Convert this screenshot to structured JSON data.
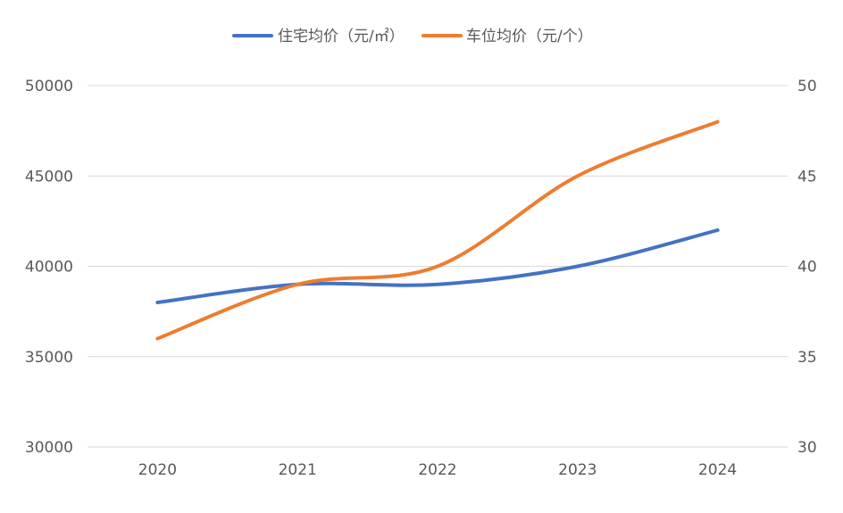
{
  "chart_data": {
    "type": "line",
    "categories": [
      "2020",
      "2021",
      "2022",
      "2023",
      "2024"
    ],
    "series": [
      {
        "name": "住宅均价（元/㎡）",
        "axis": "left",
        "color": "#4472C4",
        "values": [
          38000,
          39000,
          39000,
          40000,
          42000
        ]
      },
      {
        "name": "车位均价（元/个）",
        "axis": "right",
        "color": "#ED7D31",
        "values": [
          36,
          39,
          40,
          45,
          48
        ]
      }
    ],
    "y_left": {
      "min": 30000,
      "max": 50000,
      "ticks": [
        "30000",
        "35000",
        "40000",
        "45000",
        "50000"
      ]
    },
    "y_right": {
      "min": 30,
      "max": 50,
      "ticks": [
        "30",
        "35",
        "40",
        "45",
        "50"
      ]
    },
    "grid": true,
    "legend_position": "top",
    "smooth": true
  }
}
